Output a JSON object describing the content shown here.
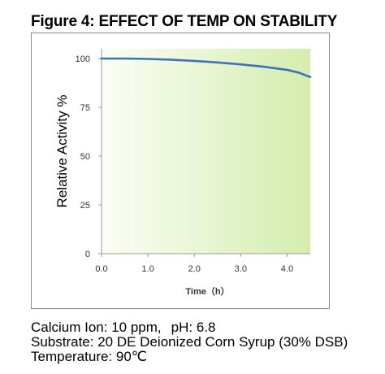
{
  "figure_title": "Figure 4: EFFECT OF TEMP ON STABILITY",
  "chart_data": {
    "type": "line",
    "title": "",
    "xlabel": "Time（h）",
    "ylabel": "Relative Activity %",
    "xlim": [
      0,
      4.5
    ],
    "ylim": [
      0,
      105
    ],
    "x_ticks": [
      "0.0",
      "1.0",
      "2.0",
      "3.0",
      "4.0"
    ],
    "x_tick_values": [
      0,
      1,
      2,
      3,
      4
    ],
    "y_ticks": [
      "0",
      "25",
      "50",
      "75",
      "100"
    ],
    "y_tick_values": [
      0,
      25,
      50,
      75,
      100
    ],
    "grid": false,
    "plot_background": "light green gradient",
    "series": [
      {
        "color": "#3a73b8",
        "x": [
          0.0,
          0.5,
          1.0,
          1.5,
          2.0,
          2.5,
          3.0,
          3.5,
          4.0,
          4.25,
          4.5
        ],
        "y": [
          100.0,
          100.0,
          99.8,
          99.4,
          98.8,
          98.0,
          97.0,
          95.8,
          94.2,
          92.8,
          90.5
        ]
      }
    ]
  },
  "conditions": {
    "calcium": "Calcium Ion: 10 ppm,",
    "ph": "pH: 6.8",
    "substrate": "Substrate: 20 DE Deionized Corn Syrup (30% DSB)",
    "temperature": "Temperature: 90℃"
  },
  "colors": {
    "line": "#3a73b8",
    "plot_bg_left": "#fbfef5",
    "plot_bg_right": "#d4edae"
  }
}
